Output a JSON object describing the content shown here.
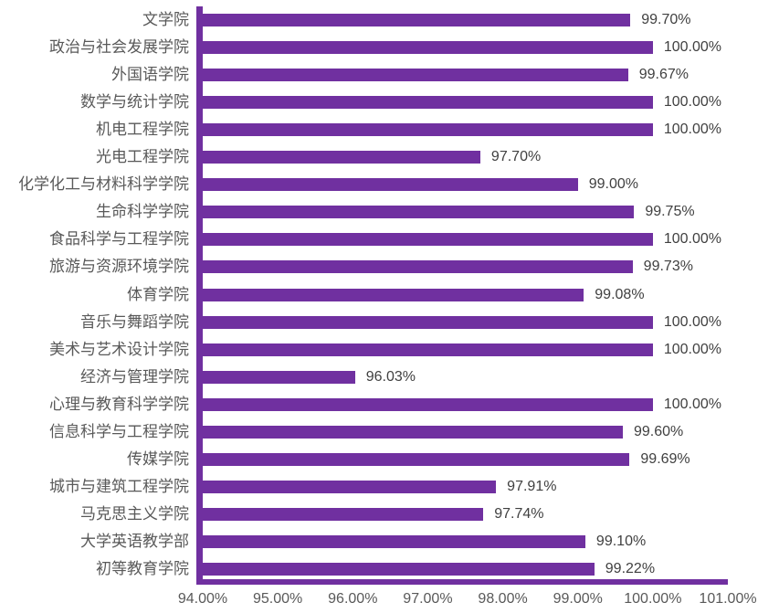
{
  "chart_data": {
    "type": "bar",
    "orientation": "horizontal",
    "title": "",
    "xlabel": "",
    "ylabel": "",
    "xlim": [
      94,
      101
    ],
    "grid": false,
    "legend": "none",
    "categories": [
      "文学院",
      "政治与社会发展学院",
      "外国语学院",
      "数学与统计学院",
      "机电工程学院",
      "光电工程学院",
      "化学化工与材料科学学院",
      "生命科学学院",
      "食品科学与工程学院",
      "旅游与资源环境学院",
      "体育学院",
      "音乐与舞蹈学院",
      "美术与艺术设计学院",
      "经济与管理学院",
      "心理与教育科学学院",
      "信息科学与工程学院",
      "传媒学院",
      "城市与建筑工程学院",
      "马克思主义学院",
      "大学英语教学部",
      "初等教育学院"
    ],
    "values": [
      99.7,
      100.0,
      99.67,
      100.0,
      100.0,
      97.7,
      99.0,
      99.75,
      100.0,
      99.73,
      99.08,
      100.0,
      100.0,
      96.03,
      100.0,
      99.6,
      99.69,
      97.91,
      97.74,
      99.1,
      99.22
    ],
    "data_labels": [
      "99.70%",
      "100.00%",
      "99.67%",
      "100.00%",
      "100.00%",
      "97.70%",
      "99.00%",
      "99.75%",
      "100.00%",
      "99.73%",
      "99.08%",
      "100.00%",
      "100.00%",
      "96.03%",
      "100.00%",
      "99.60%",
      "99.69%",
      "97.91%",
      "97.74%",
      "99.10%",
      "99.22%"
    ],
    "x_tick_labels": [
      "94.00%",
      "95.00%",
      "96.00%",
      "97.00%",
      "98.00%",
      "99.00%",
      "100.00%",
      "101.00%"
    ]
  },
  "colors": {
    "bar": "#7030A0",
    "axis_line": "#7030A0",
    "category_label": "#595959",
    "value_label": "#404040",
    "tick_label": "#595959",
    "background": "#ffffff"
  }
}
